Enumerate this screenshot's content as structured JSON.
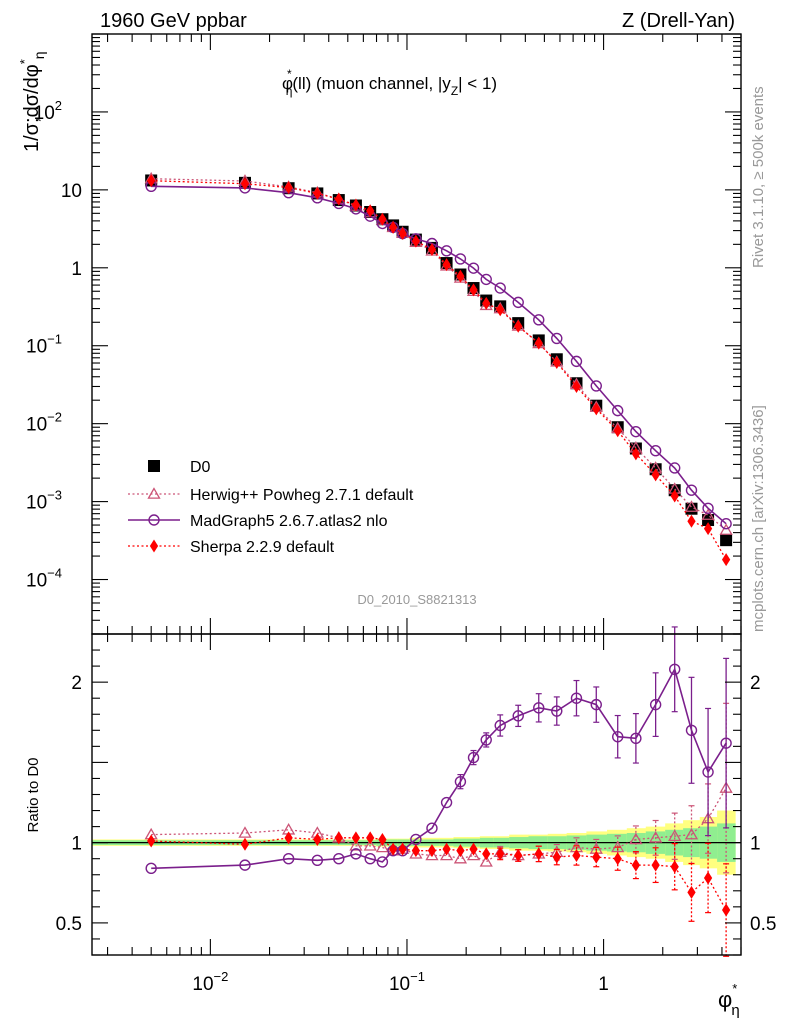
{
  "header": {
    "left": "1960 GeV ppbar",
    "right": "Z (Drell-Yan)"
  },
  "side_labels": {
    "rivet": "Rivet 3.1.10, ≥ 500k events",
    "mcplots": "mcplots.cern.ch [arXiv:1306.3436]"
  },
  "analysis_id": "D0_2010_S8821313",
  "chart_data": {
    "type": "line",
    "title": "φ*η(ll) (muon channel, |yZ| < 1)",
    "title_parts": {
      "phi": "φ",
      "star": "*",
      "eta": "η",
      "mid": "(ll) (muon channel, |y",
      "z": "Z",
      "end": "| < 1)"
    },
    "xlabel": "φ*η",
    "xlabel_parts": {
      "phi": "φ",
      "star": "*",
      "eta": "η"
    },
    "ylabel": "1/σ;dσ/dφ*η",
    "ylabel_parts": {
      "main": "1/σ;dσ/dφ",
      "star": "*",
      "eta": "η"
    },
    "ratio_ylabel": "Ratio to D0",
    "x_scale": "log",
    "y_scale": "log",
    "xlim": [
      0.0025,
      5
    ],
    "ylim": [
      2e-05,
      1000
    ],
    "ratio_ylim": [
      0.3,
      2.3
    ],
    "x_ticks": [
      {
        "value": 0.01,
        "base": "10",
        "exp": "−2"
      },
      {
        "value": 0.1,
        "base": "10",
        "exp": "−1"
      },
      {
        "value": 1,
        "base": "1",
        "exp": ""
      }
    ],
    "y_ticks": [
      {
        "value": 0.0001,
        "base": "10",
        "exp": "−4"
      },
      {
        "value": 0.001,
        "base": "10",
        "exp": "−3"
      },
      {
        "value": 0.01,
        "base": "10",
        "exp": "−2"
      },
      {
        "value": 0.1,
        "base": "10",
        "exp": "−1"
      },
      {
        "value": 1,
        "base": "1",
        "exp": ""
      },
      {
        "value": 10,
        "base": "10",
        "exp": ""
      },
      {
        "value": 100,
        "base": "10",
        "exp": "2"
      }
    ],
    "ratio_ticks": [
      {
        "value": 0.5,
        "label": "0.5"
      },
      {
        "value": 1,
        "label": "1"
      },
      {
        "value": 2,
        "label": "2"
      }
    ],
    "x": [
      0.005,
      0.015,
      0.025,
      0.035,
      0.045,
      0.055,
      0.065,
      0.075,
      0.085,
      0.095,
      0.111,
      0.134,
      0.159,
      0.187,
      0.218,
      0.253,
      0.298,
      0.368,
      0.468,
      0.578,
      0.728,
      0.918,
      1.18,
      1.46,
      1.84,
      2.3,
      2.8,
      3.4,
      4.2
    ],
    "series": [
      {
        "name": "D0",
        "marker": "square",
        "color": "#000000",
        "values": [
          13.2,
          12.3,
          10.5,
          9.0,
          7.4,
          6.3,
          5.2,
          4.2,
          3.5,
          2.9,
          2.3,
          1.8,
          1.15,
          0.82,
          0.55,
          0.38,
          0.32,
          0.195,
          0.117,
          0.067,
          0.033,
          0.017,
          0.009,
          0.0048,
          0.0026,
          0.0014,
          0.00081,
          0.00058,
          0.00032
        ]
      },
      {
        "name": "Herwig++ Powheg 2.7.1 default",
        "marker": "triangle-open",
        "color": "#cc5577",
        "line": "dotted",
        "values": [
          13.9,
          13.0,
          10.9,
          9.2,
          7.6,
          6.2,
          5.1,
          4.1,
          3.3,
          2.8,
          2.13,
          1.65,
          1.06,
          0.74,
          0.5,
          0.33,
          0.3,
          0.179,
          0.107,
          0.062,
          0.032,
          0.0163,
          0.0087,
          0.0049,
          0.0027,
          0.00145,
          0.00085,
          0.00067,
          0.00043
        ]
      },
      {
        "name": "MadGraph5 2.6.7.atlas2 nlo",
        "marker": "circle-open",
        "color": "#7b1f8c",
        "line": "solid",
        "values": [
          11.1,
          10.6,
          9.2,
          7.9,
          6.7,
          5.7,
          4.6,
          3.7,
          3.3,
          2.75,
          2.35,
          2.05,
          1.65,
          1.3,
          0.99,
          0.71,
          0.55,
          0.36,
          0.215,
          0.124,
          0.063,
          0.0305,
          0.0147,
          0.0079,
          0.0045,
          0.0027,
          0.0014,
          0.00082,
          0.00052
        ]
      },
      {
        "name": "Sherpa 2.2.9 default",
        "marker": "diamond",
        "color": "#ff0000",
        "line": "dotted",
        "values": [
          13.1,
          12.0,
          10.7,
          9.0,
          7.6,
          6.4,
          5.4,
          4.2,
          3.3,
          2.75,
          2.2,
          1.72,
          1.1,
          0.78,
          0.52,
          0.35,
          0.29,
          0.178,
          0.108,
          0.061,
          0.03,
          0.0155,
          0.0081,
          0.0041,
          0.0022,
          0.00118,
          0.00056,
          0.00045,
          0.00018
        ]
      }
    ],
    "ratios": [
      {
        "name": "Herwig++ Powheg 2.7.1 default",
        "values": [
          1.05,
          1.06,
          1.08,
          1.06,
          1.03,
          0.98,
          0.98,
          0.97,
          0.95,
          0.96,
          0.93,
          0.92,
          0.92,
          0.9,
          0.92,
          0.88,
          0.94,
          0.92,
          0.93,
          0.94,
          0.97,
          0.96,
          0.97,
          1.02,
          1.03,
          1.04,
          1.05,
          1.15,
          1.34
        ]
      },
      {
        "name": "MadGraph5 2.6.7.atlas2 nlo",
        "values": [
          0.84,
          0.86,
          0.9,
          0.89,
          0.9,
          0.93,
          0.9,
          0.88,
          0.95,
          0.95,
          1.02,
          1.09,
          1.25,
          1.38,
          1.53,
          1.64,
          1.73,
          1.79,
          1.84,
          1.82,
          1.9,
          1.86,
          1.66,
          1.65,
          1.86,
          2.08,
          1.7,
          1.44,
          1.62
        ]
      },
      {
        "name": "Sherpa 2.2.9 default",
        "values": [
          1.01,
          0.99,
          1.03,
          1.02,
          1.03,
          1.03,
          1.03,
          1.02,
          0.96,
          0.96,
          0.95,
          0.95,
          0.96,
          0.95,
          0.96,
          0.93,
          0.93,
          0.92,
          0.93,
          0.91,
          0.92,
          0.91,
          0.9,
          0.86,
          0.86,
          0.85,
          0.69,
          0.78,
          0.58
        ]
      }
    ],
    "ratio_errors": [
      0.01,
      0.01,
      0.01,
      0.01,
      0.01,
      0.01,
      0.01,
      0.01,
      0.01,
      0.01,
      0.01,
      0.01,
      0.02,
      0.02,
      0.02,
      0.02,
      0.03,
      0.03,
      0.04,
      0.04,
      0.05,
      0.05,
      0.06,
      0.07,
      0.09,
      0.12,
      0.15,
      0.18,
      0.24
    ],
    "band_inner": [
      0.015,
      0.015,
      0.015,
      0.015,
      0.015,
      0.015,
      0.015,
      0.02,
      0.02,
      0.02,
      0.02,
      0.02,
      0.02,
      0.025,
      0.025,
      0.03,
      0.03,
      0.035,
      0.04,
      0.04,
      0.045,
      0.05,
      0.055,
      0.06,
      0.07,
      0.08,
      0.09,
      0.1,
      0.12
    ],
    "band_outer": [
      0.02,
      0.02,
      0.02,
      0.02,
      0.02,
      0.02,
      0.02,
      0.025,
      0.025,
      0.025,
      0.03,
      0.03,
      0.03,
      0.035,
      0.035,
      0.04,
      0.04,
      0.05,
      0.05,
      0.055,
      0.06,
      0.07,
      0.08,
      0.09,
      0.1,
      0.12,
      0.14,
      0.16,
      0.2
    ],
    "band_colors": {
      "inner": "#90ee90",
      "outer": "#ffff80"
    },
    "legend_position": "bottom-left"
  }
}
